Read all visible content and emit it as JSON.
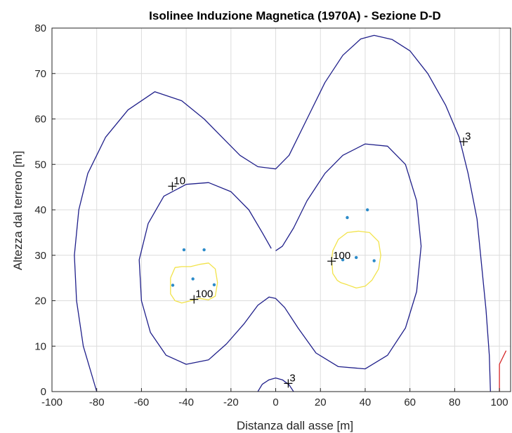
{
  "chart_data": {
    "type": "contour",
    "title": "Isolinee Induzione Magnetica (1970A) - Sezione D-D",
    "xlabel": "Distanza dall asse [m]",
    "ylabel": "Altezza dal terreno [m]",
    "xlim": [
      -100,
      105
    ],
    "ylim": [
      0,
      80
    ],
    "xticks": [
      -100,
      -80,
      -60,
      -40,
      -20,
      0,
      20,
      40,
      60,
      80,
      100
    ],
    "yticks": [
      0,
      10,
      20,
      30,
      40,
      50,
      60,
      70,
      80
    ],
    "grid": true,
    "colors": {
      "outer": "#1f1f8a",
      "high": "#f2e34a",
      "points": "#2c8bc9",
      "edge": "#d62728",
      "axes": "#262626",
      "grid": "#dcdcdc"
    },
    "contours": [
      {
        "level": "3",
        "color": "outer",
        "paths": [
          [
            [
              -80,
              0
            ],
            [
              -86,
              10
            ],
            [
              -89,
              20
            ],
            [
              -90,
              30
            ],
            [
              -88,
              40
            ],
            [
              -84,
              48
            ],
            [
              -76,
              56
            ],
            [
              -66,
              62
            ],
            [
              -54,
              66
            ],
            [
              -42,
              64
            ],
            [
              -32,
              60
            ],
            [
              -24,
              56
            ],
            [
              -16,
              52
            ],
            [
              -8,
              49.5
            ],
            [
              0,
              49
            ],
            [
              6,
              52
            ],
            [
              14,
              60
            ],
            [
              22,
              68
            ],
            [
              30,
              74
            ],
            [
              38,
              77.6
            ],
            [
              44,
              78.4
            ],
            [
              52,
              77.5
            ],
            [
              60,
              75
            ],
            [
              68,
              70
            ],
            [
              76,
              63
            ],
            [
              82,
              56
            ],
            [
              86,
              48
            ],
            [
              90,
              38
            ],
            [
              92,
              28
            ],
            [
              94,
              18
            ],
            [
              95.5,
              8
            ],
            [
              96,
              0
            ]
          ],
          [
            [
              -8,
              0
            ],
            [
              -6,
              1.6
            ],
            [
              -3,
              2.6
            ],
            [
              0,
              3
            ],
            [
              3,
              2.6
            ],
            [
              6,
              1.5
            ],
            [
              8,
              0
            ]
          ]
        ]
      },
      {
        "level": "10",
        "color": "outer",
        "paths": [
          [
            [
              -2,
              31.5
            ],
            [
              -6,
              35
            ],
            [
              -12,
              40
            ],
            [
              -20,
              44
            ],
            [
              -30,
              46
            ],
            [
              -40,
              45.6
            ],
            [
              -50,
              43
            ],
            [
              -57,
              37
            ],
            [
              -61,
              29
            ],
            [
              -60,
              20
            ],
            [
              -56,
              13
            ],
            [
              -49,
              8
            ],
            [
              -40,
              6
            ],
            [
              -30,
              7
            ],
            [
              -22,
              10.5
            ],
            [
              -14,
              15
            ],
            [
              -8,
              19
            ],
            [
              -3,
              20.8
            ],
            [
              0,
              20.5
            ],
            [
              4,
              18.5
            ],
            [
              10,
              14
            ],
            [
              18,
              8.5
            ],
            [
              28,
              5.5
            ],
            [
              40,
              5
            ],
            [
              50,
              8
            ],
            [
              58,
              14
            ],
            [
              63,
              22
            ],
            [
              65,
              32
            ],
            [
              63,
              42
            ],
            [
              58,
              50
            ],
            [
              50,
              54
            ],
            [
              40,
              54.5
            ],
            [
              30,
              52
            ],
            [
              22,
              48
            ],
            [
              14,
              42
            ],
            [
              8,
              36
            ],
            [
              3,
              32
            ],
            [
              0,
              31
            ]
          ]
        ]
      },
      {
        "level": "100",
        "color": "high",
        "paths": [
          [
            [
              -47,
              25
            ],
            [
              -47,
              21.5
            ],
            [
              -45,
              20
            ],
            [
              -42,
              19.5
            ],
            [
              -38,
              20
            ],
            [
              -34,
              20.5
            ],
            [
              -30,
              20.2
            ],
            [
              -27,
              21
            ],
            [
              -26,
              24
            ],
            [
              -27,
              27
            ],
            [
              -30,
              28.3
            ],
            [
              -34,
              28
            ],
            [
              -38,
              27.5
            ],
            [
              -42,
              27.5
            ],
            [
              -45,
              27.3
            ],
            [
              -47,
              25
            ]
          ],
          [
            [
              25,
              29
            ],
            [
              25.5,
              26
            ],
            [
              27.5,
              24.5
            ],
            [
              29,
              24
            ],
            [
              32,
              23.5
            ],
            [
              36,
              22.8
            ],
            [
              40,
              23.2
            ],
            [
              43,
              24.5
            ],
            [
              46,
              27
            ],
            [
              47,
              30
            ],
            [
              46,
              33
            ],
            [
              42,
              35
            ],
            [
              37,
              35.3
            ],
            [
              32,
              35
            ],
            [
              28,
              33.5
            ],
            [
              25.5,
              31
            ],
            [
              25,
              29
            ]
          ]
        ]
      },
      {
        "level": "",
        "color": "edge",
        "paths": [
          [
            [
              100,
              0
            ],
            [
              100,
              6
            ],
            [
              103,
              9
            ]
          ]
        ]
      }
    ],
    "conductors": [
      [
        -41,
        31.2
      ],
      [
        -32,
        31.2
      ],
      [
        -37,
        24.8
      ],
      [
        -27.5,
        23.5
      ],
      [
        -46,
        23.4
      ],
      [
        32,
        38.3
      ],
      [
        41,
        40
      ],
      [
        30,
        29
      ],
      [
        36,
        29.5
      ],
      [
        44,
        28.8
      ]
    ],
    "labels": [
      {
        "text": "10",
        "x": -46.2,
        "y": 45.2
      },
      {
        "text": "100",
        "x": -36.5,
        "y": 20.3
      },
      {
        "text": "100",
        "x": 25,
        "y": 28.7
      },
      {
        "text": "3",
        "x": 84,
        "y": 55
      },
      {
        "text": "3",
        "x": 5.6,
        "y": 1.8
      }
    ]
  }
}
